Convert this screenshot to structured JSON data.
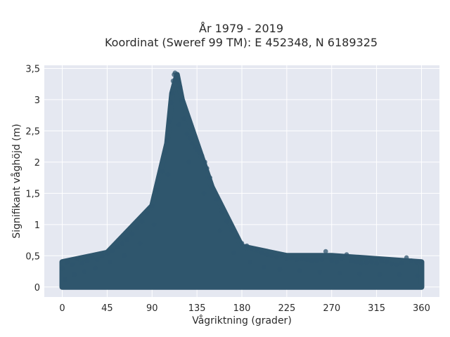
{
  "chart_data": {
    "type": "scatter",
    "title": "År 1979 - 2019",
    "subtitle": "Koordinat (Sweref 99 TM): E 452348, N 6189325",
    "xlabel": "Vågriktning (grader)",
    "ylabel": "Signifikant våghöjd (m)",
    "xlim": [
      -18,
      378
    ],
    "ylim": [
      -0.16,
      3.55
    ],
    "xticks": [
      0,
      45,
      90,
      135,
      180,
      225,
      270,
      315,
      360
    ],
    "xtick_labels": [
      "0",
      "45",
      "90",
      "135",
      "180",
      "225",
      "270",
      "315",
      "360"
    ],
    "yticks": [
      0,
      0.5,
      1,
      1.5,
      2,
      2.5,
      3,
      3.5
    ],
    "ytick_labels": [
      "0",
      "0,5",
      "1",
      "1,5",
      "2",
      "2,5",
      "3",
      "3,5"
    ],
    "grid": true,
    "marker_color": "#2f566d",
    "plot_background": "#e5e8f1",
    "envelope": {
      "x": [
        0,
        45,
        90,
        105,
        110,
        115,
        120,
        135,
        150,
        180,
        225,
        270,
        315,
        360
      ],
      "upper_y": [
        0.4,
        0.55,
        1.3,
        2.3,
        3.1,
        3.4,
        3.0,
        2.3,
        1.6,
        0.65,
        0.5,
        0.5,
        0.45,
        0.4
      ],
      "lower_y": [
        0,
        0,
        0,
        0,
        0,
        0,
        0,
        0,
        0,
        0,
        0,
        0,
        0,
        0
      ]
    },
    "series": [
      {
        "values": [
          [
            0,
            0.3
          ],
          [
            5,
            0.4
          ],
          [
            10,
            0.36
          ],
          [
            15,
            0.45
          ],
          [
            20,
            0.38
          ],
          [
            25,
            0.42
          ],
          [
            30,
            0.47
          ],
          [
            35,
            0.44
          ],
          [
            40,
            0.5
          ],
          [
            45,
            0.55
          ],
          [
            50,
            0.58
          ],
          [
            55,
            0.64
          ],
          [
            60,
            0.7
          ],
          [
            65,
            0.76
          ],
          [
            70,
            0.85
          ],
          [
            75,
            0.95
          ],
          [
            80,
            1.05
          ],
          [
            85,
            1.18
          ],
          [
            90,
            1.3
          ],
          [
            95,
            1.55
          ],
          [
            100,
            1.85
          ],
          [
            103,
            2.15
          ],
          [
            105,
            2.35
          ],
          [
            107,
            2.65
          ],
          [
            109,
            2.95
          ],
          [
            110,
            3.1
          ],
          [
            111,
            3.3
          ],
          [
            112,
            3.4
          ],
          [
            113,
            3.43
          ],
          [
            114,
            3.35
          ],
          [
            116,
            3.28
          ],
          [
            118,
            3.2
          ],
          [
            120,
            3.0
          ],
          [
            122,
            2.7
          ],
          [
            125,
            2.45
          ],
          [
            128,
            2.38
          ],
          [
            130,
            2.3
          ],
          [
            133,
            2.25
          ],
          [
            135,
            2.2
          ],
          [
            138,
            2.15
          ],
          [
            140,
            2.1
          ],
          [
            143,
            2.0
          ],
          [
            145,
            1.9
          ],
          [
            148,
            1.75
          ],
          [
            150,
            1.6
          ],
          [
            155,
            1.4
          ],
          [
            160,
            1.2
          ],
          [
            165,
            1.05
          ],
          [
            170,
            0.9
          ],
          [
            175,
            0.8
          ],
          [
            180,
            0.7
          ],
          [
            185,
            0.66
          ],
          [
            190,
            0.62
          ],
          [
            195,
            0.6
          ],
          [
            200,
            0.55
          ],
          [
            205,
            0.52
          ],
          [
            210,
            0.5
          ],
          [
            215,
            0.48
          ],
          [
            220,
            0.5
          ],
          [
            225,
            0.45
          ],
          [
            230,
            0.46
          ],
          [
            235,
            0.44
          ],
          [
            240,
            0.45
          ],
          [
            245,
            0.44
          ],
          [
            250,
            0.42
          ],
          [
            255,
            0.43
          ],
          [
            260,
            0.44
          ],
          [
            264,
            0.57
          ],
          [
            270,
            0.42
          ],
          [
            275,
            0.4
          ],
          [
            280,
            0.45
          ],
          [
            285,
            0.52
          ],
          [
            290,
            0.42
          ],
          [
            295,
            0.4
          ],
          [
            300,
            0.38
          ],
          [
            305,
            0.39
          ],
          [
            310,
            0.4
          ],
          [
            315,
            0.38
          ],
          [
            320,
            0.42
          ],
          [
            325,
            0.4
          ],
          [
            330,
            0.37
          ],
          [
            335,
            0.36
          ],
          [
            340,
            0.38
          ],
          [
            345,
            0.47
          ],
          [
            350,
            0.42
          ],
          [
            355,
            0.4
          ],
          [
            360,
            0.39
          ],
          [
            3,
            0.12
          ],
          [
            12,
            0.2
          ],
          [
            22,
            0.25
          ],
          [
            33,
            0.3
          ],
          [
            48,
            0.4
          ],
          [
            62,
            0.5
          ],
          [
            78,
            0.7
          ],
          [
            92,
            1.0
          ],
          [
            106,
            1.8
          ],
          [
            117,
            2.6
          ],
          [
            127,
            2.0
          ],
          [
            142,
            1.5
          ],
          [
            158,
            0.9
          ],
          [
            172,
            0.55
          ],
          [
            188,
            0.4
          ],
          [
            202,
            0.32
          ],
          [
            218,
            0.28
          ],
          [
            238,
            0.26
          ],
          [
            258,
            0.24
          ],
          [
            278,
            0.22
          ],
          [
            298,
            0.21
          ],
          [
            318,
            0.2
          ],
          [
            338,
            0.2
          ],
          [
            356,
            0.18
          ]
        ]
      }
    ]
  }
}
